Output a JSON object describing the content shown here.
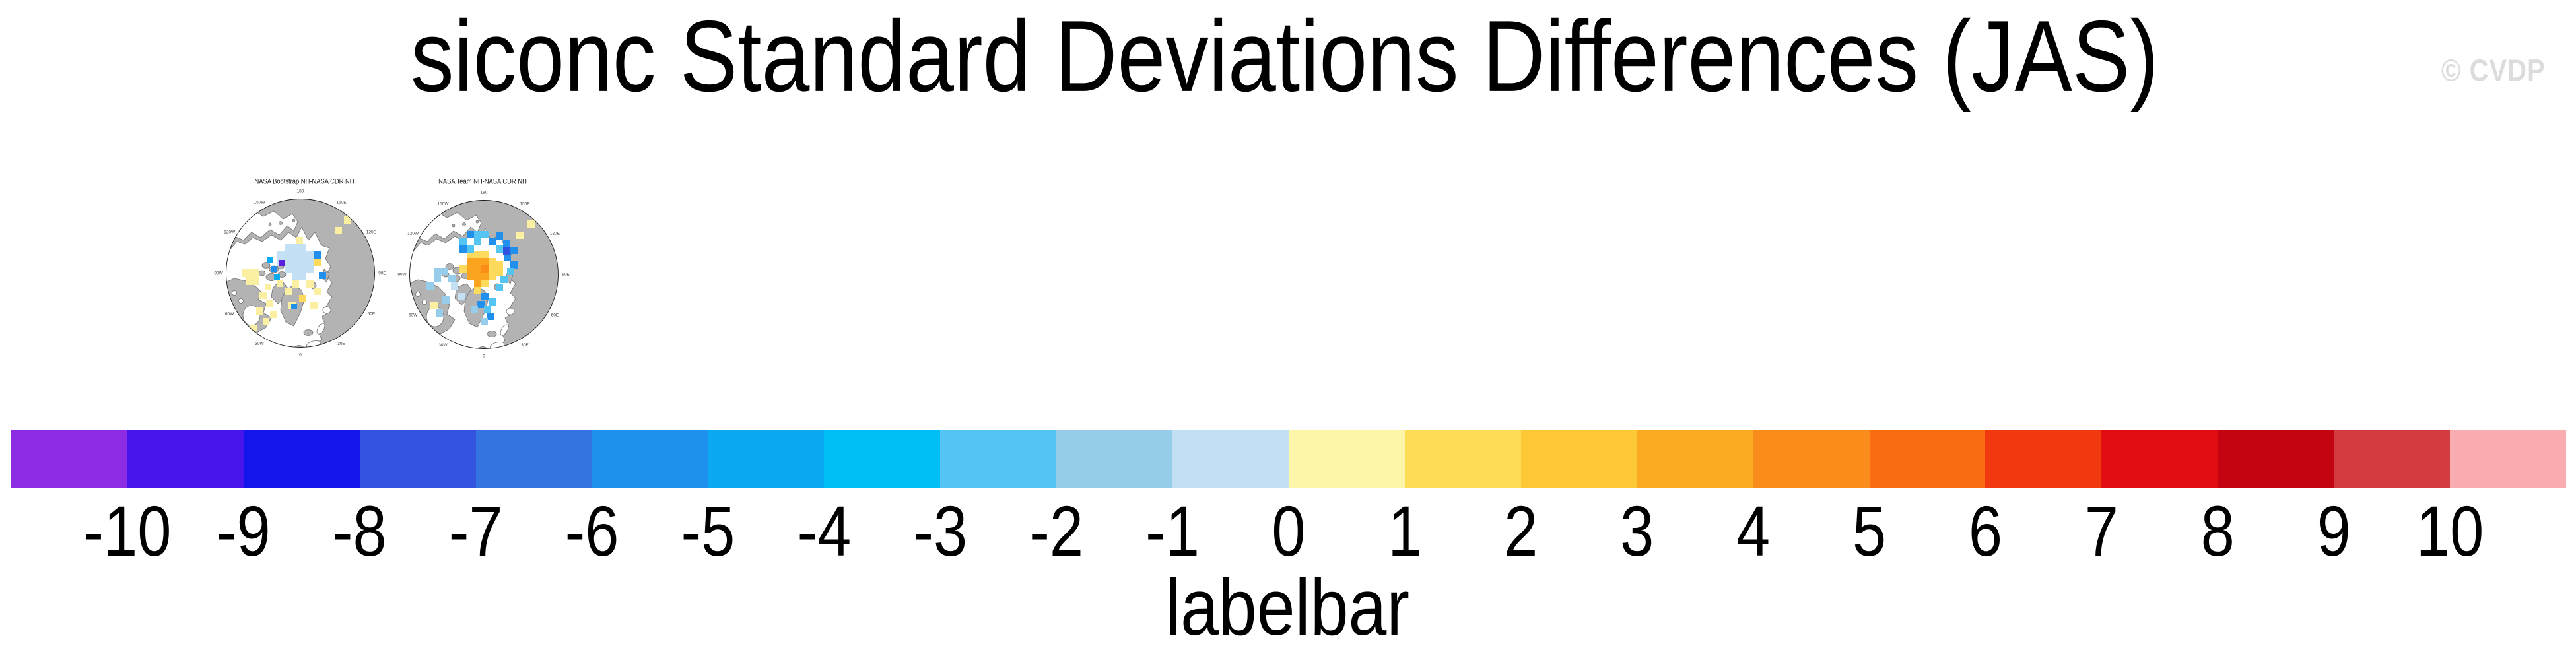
{
  "title": "siconc Standard Deviations Differences (JAS)",
  "watermark": "© CVDP",
  "maps": {
    "lon_labels": [
      "180",
      "150W",
      "150E",
      "120W",
      "120E",
      "90W",
      "90E",
      "60W",
      "60E",
      "30W",
      "30E",
      "0"
    ],
    "palette": {
      "paleBlue": "#C3E0F4",
      "lightBlue": "#96CDEA",
      "sky": "#54C5F2",
      "cyan": "#0CAAF2",
      "blue": "#2090EC",
      "darkBlue": "#3154DE",
      "purple": "#5A1EDC",
      "paleYellow": "#FBF0A2",
      "gold": "#FDD95C",
      "orange": "#FAA420",
      "deepOrange": "#F98D16"
    },
    "panels": [
      {
        "title": "NASA Bootstrap NH-NASA CDR NH",
        "cells": [
          [
            106,
            88,
            "paleBlue"
          ],
          [
            117,
            88,
            "paleBlue"
          ],
          [
            128,
            88,
            "paleBlue"
          ],
          [
            95,
            99,
            "paleBlue"
          ],
          [
            106,
            99,
            "paleBlue"
          ],
          [
            117,
            99,
            "paleBlue"
          ],
          [
            128,
            99,
            "paleBlue"
          ],
          [
            139,
            99,
            "paleBlue"
          ],
          [
            95,
            110,
            "paleBlue"
          ],
          [
            106,
            110,
            "paleBlue"
          ],
          [
            117,
            110,
            "paleBlue"
          ],
          [
            128,
            110,
            "paleBlue"
          ],
          [
            139,
            110,
            "paleBlue"
          ],
          [
            106,
            121,
            "paleBlue"
          ],
          [
            117,
            121,
            "paleBlue"
          ],
          [
            128,
            121,
            "paleBlue"
          ],
          [
            139,
            121,
            "paleBlue"
          ],
          [
            117,
            132,
            "paleBlue"
          ],
          [
            128,
            132,
            "paleBlue"
          ],
          [
            150,
            99,
            "blue"
          ],
          [
            150,
            110,
            "gold"
          ],
          [
            158,
            130,
            "blue"
          ],
          [
            97,
            112,
            "purple",
            9,
            9
          ],
          [
            86,
            121,
            "blue",
            9,
            9
          ],
          [
            90,
            133,
            "cyan",
            9,
            9
          ],
          [
            80,
            108,
            "cyan",
            8,
            8
          ],
          [
            123,
            77,
            "paleYellow"
          ],
          [
            117,
            143,
            "paleYellow"
          ],
          [
            139,
            143,
            "paleYellow"
          ],
          [
            106,
            154,
            "paleYellow"
          ],
          [
            150,
            154,
            "paleYellow"
          ],
          [
            128,
            165,
            "gold"
          ],
          [
            145,
            176,
            "paleYellow"
          ],
          [
            112,
            176,
            "paleYellow"
          ],
          [
            42,
            126,
            "paleYellow",
            26,
            12
          ],
          [
            48,
            138,
            "paleYellow",
            20,
            12
          ],
          [
            94,
            143,
            "paleYellow",
            10,
            10
          ],
          [
            76,
            148,
            "paleYellow",
            10,
            10
          ],
          [
            68,
            160,
            "paleYellow"
          ],
          [
            78,
            172,
            "paleYellow"
          ],
          [
            63,
            184,
            "paleYellow"
          ],
          [
            84,
            190,
            "paleYellow",
            10,
            10
          ],
          [
            73,
            200,
            "paleYellow",
            10,
            10
          ],
          [
            54,
            210,
            "paleYellow",
            10,
            10
          ],
          [
            116,
            178,
            "blue",
            9,
            9
          ],
          [
            196,
            46,
            "paleYellow"
          ],
          [
            182,
            62,
            "paleYellow"
          ]
        ]
      },
      {
        "title": "NASA Team NH-NASA CDR NH",
        "cells": [
          [
            104,
            107,
            "orange",
            33,
            11
          ],
          [
            104,
            118,
            "orange",
            33,
            11
          ],
          [
            104,
            129,
            "orange",
            33,
            11
          ],
          [
            115,
            140,
            "orange",
            22,
            11
          ],
          [
            126,
            118,
            "deepOrange"
          ],
          [
            104,
            96,
            "gold",
            33,
            11
          ],
          [
            137,
            107,
            "gold",
            11,
            33
          ],
          [
            126,
            140,
            "gold"
          ],
          [
            115,
            151,
            "gold"
          ],
          [
            93,
            118,
            "gold"
          ],
          [
            148,
            112,
            "gold",
            11,
            22
          ],
          [
            104,
            66,
            "blue"
          ],
          [
            148,
            68,
            "blue"
          ],
          [
            137,
            77,
            "blue"
          ],
          [
            159,
            80,
            "blue"
          ],
          [
            170,
            90,
            "blue"
          ],
          [
            160,
            100,
            "blue"
          ],
          [
            170,
            112,
            "blue"
          ],
          [
            126,
            160,
            "blue"
          ],
          [
            120,
            172,
            "blue"
          ],
          [
            135,
            190,
            "blue"
          ],
          [
            93,
            88,
            "blue"
          ],
          [
            159,
            91,
            "darkBlue"
          ],
          [
            126,
            66,
            "sky"
          ],
          [
            115,
            66,
            "sky"
          ],
          [
            93,
            77,
            "sky"
          ],
          [
            115,
            77,
            "sky"
          ],
          [
            104,
            88,
            "sky"
          ],
          [
            148,
            88,
            "sky"
          ],
          [
            165,
            122,
            "sky"
          ],
          [
            155,
            134,
            "sky"
          ],
          [
            137,
            168,
            "sky"
          ],
          [
            130,
            180,
            "sky"
          ],
          [
            148,
            146,
            "sky"
          ],
          [
            54,
            122,
            "lightBlue"
          ],
          [
            65,
            122,
            "lightBlue"
          ],
          [
            54,
            133,
            "lightBlue"
          ],
          [
            76,
            133,
            "lightBlue"
          ],
          [
            67,
            165,
            "lightBlue"
          ],
          [
            57,
            185,
            "lightBlue"
          ],
          [
            110,
            180,
            "lightBlue"
          ],
          [
            125,
            198,
            "lightBlue"
          ],
          [
            43,
            144,
            "lightBlue"
          ],
          [
            80,
            144,
            "paleBlue"
          ],
          [
            90,
            160,
            "paleBlue"
          ],
          [
            179,
            67,
            "paleYellow"
          ],
          [
            196,
            50,
            "paleYellow"
          ],
          [
            49,
            173,
            "paleYellow"
          ]
        ]
      }
    ]
  },
  "labelbar": {
    "caption": "labelbar",
    "tick_labels": [
      "-10",
      "-9",
      "-8",
      "-7",
      "-6",
      "-5",
      "-4",
      "-3",
      "-2",
      "-1",
      "0",
      "1",
      "2",
      "3",
      "4",
      "5",
      "6",
      "7",
      "8",
      "9",
      "10"
    ],
    "colors": [
      "#8C2BE2",
      "#4714EB",
      "#1414EC",
      "#3153DE",
      "#3374E0",
      "#1F90EC",
      "#0BA9F2",
      "#00BFF4",
      "#52C5F2",
      "#94CCEA",
      "#C2E0F4",
      "#FDF6A8",
      "#FDDD55",
      "#FCC935",
      "#FBAB22",
      "#FA8C1C",
      "#F96C12",
      "#F1380E",
      "#E20D12",
      "#C40511",
      "#D23B40",
      "#F9ADB0"
    ]
  },
  "chart_data": {
    "type": "heatmap",
    "title": "siconc Standard Deviations Differences (JAS)",
    "variable": "siconc",
    "season": "JAS",
    "panels": [
      {
        "name": "NASA Bootstrap NH-NASA CDR NH",
        "projection": "north polar stereographic",
        "summary": "Pale blue (-1 to 0) block over the central Arctic Ocean; scattered pale yellow (0 to 1) cells over the Canadian Archipelago, Banks Island, Baffin Bay and Hudson Bay; isolated blue, cyan and purple cells near the archipelago; two yellow cells on the East Siberian coast."
      },
      {
        "name": "NASA Team NH-NASA CDR NH",
        "projection": "north polar stereographic",
        "summary": "Orange core (3 to 5) with gold fringe (1 to 3) over the central Arctic near the pole; ring of blue and sky-blue cells (-6 to -2) around it extending toward Fram Strait and the Siberian shelf; light blue cells (-2 to -1) near the Canadian Archipelago and Hudson Bay; isolated pale yellow cells near the Siberian coast and Labrador."
      }
    ],
    "colorbar": {
      "caption": "labelbar",
      "tick_values": [
        -10,
        -9,
        -8,
        -7,
        -6,
        -5,
        -4,
        -3,
        -2,
        -1,
        0,
        1,
        2,
        3,
        4,
        5,
        6,
        7,
        8,
        9,
        10
      ],
      "n_colors": 22,
      "colors": [
        "#8C2BE2",
        "#4714EB",
        "#1414EC",
        "#3153DE",
        "#3374E0",
        "#1F90EC",
        "#0BA9F2",
        "#00BFF4",
        "#52C5F2",
        "#94CCEA",
        "#C2E0F4",
        "#FDF6A8",
        "#FDDD55",
        "#FCC935",
        "#FBAB22",
        "#FA8C1C",
        "#F96C12",
        "#F1380E",
        "#E20D12",
        "#C40511",
        "#D23B40",
        "#F9ADB0"
      ],
      "legend_position": "bottom"
    }
  }
}
